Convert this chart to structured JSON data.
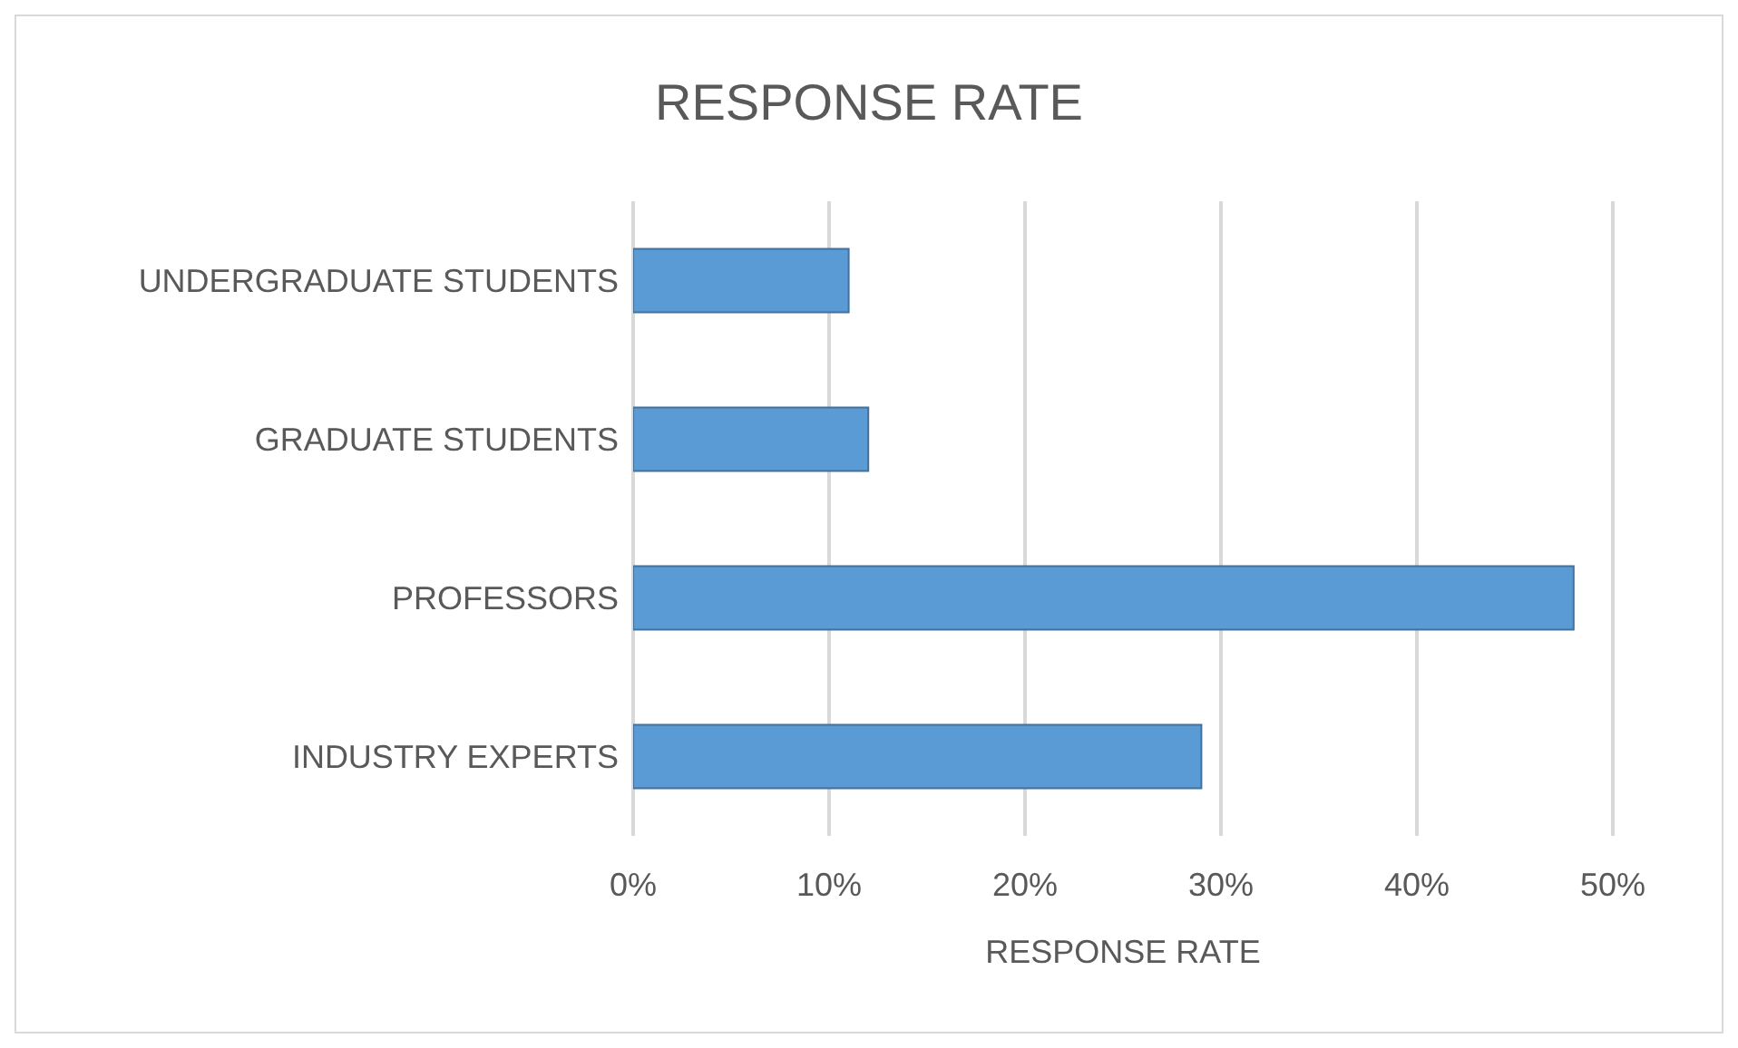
{
  "chart_data": {
    "type": "bar",
    "title": "RESPONSE RATE",
    "xlabel": "RESPONSE RATE",
    "orientation": "horizontal",
    "categories": [
      "UNDERGRADUATE STUDENTS",
      "GRADUATE STUDENTS",
      "PROFESSORS",
      "INDUSTRY EXPERTS"
    ],
    "values": [
      11,
      12,
      48,
      29
    ],
    "color": "#5b9bd5",
    "xlim": [
      0,
      50
    ],
    "xticks": [
      {
        "value": 0,
        "label": "0%"
      },
      {
        "value": 10,
        "label": "10%"
      },
      {
        "value": 20,
        "label": "20%"
      },
      {
        "value": 30,
        "label": "30%"
      },
      {
        "value": 40,
        "label": "40%"
      },
      {
        "value": 50,
        "label": "50%"
      }
    ],
    "grid": "x"
  }
}
